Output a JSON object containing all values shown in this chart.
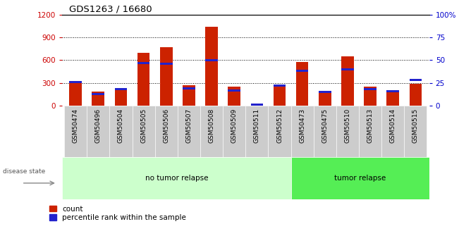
{
  "title": "GDS1263 / 16680",
  "samples": [
    "GSM50474",
    "GSM50496",
    "GSM50504",
    "GSM50505",
    "GSM50506",
    "GSM50507",
    "GSM50508",
    "GSM50509",
    "GSM50511",
    "GSM50512",
    "GSM50473",
    "GSM50475",
    "GSM50510",
    "GSM50513",
    "GSM50514",
    "GSM50515"
  ],
  "count_values": [
    310,
    185,
    215,
    700,
    770,
    270,
    1040,
    250,
    10,
    250,
    580,
    195,
    650,
    250,
    205,
    290
  ],
  "percentile_values": [
    26,
    13,
    18,
    47,
    46,
    19,
    50,
    17,
    1,
    22,
    38,
    15,
    40,
    18,
    16,
    28
  ],
  "no_tumor_count": 10,
  "tumor_relapse_count": 6,
  "left_ylim": [
    0,
    1200
  ],
  "right_ylim": [
    0,
    100
  ],
  "left_yticks": [
    0,
    300,
    600,
    900,
    1200
  ],
  "right_yticks": [
    0,
    25,
    50,
    75,
    100
  ],
  "right_yticklabels": [
    "0",
    "25",
    "50",
    "75",
    "100%"
  ],
  "left_tick_color": "#cc0000",
  "right_tick_color": "#0000cc",
  "bar_red": "#cc2200",
  "bar_blue": "#2222cc",
  "no_tumor_bg": "#ccffcc",
  "tumor_bg": "#55ee55",
  "tick_label_bg": "#cccccc",
  "legend_count": "count",
  "legend_percentile": "percentile rank within the sample",
  "disease_state_label": "disease state",
  "no_tumor_label": "no tumor relapse",
  "tumor_label": "tumor relapse"
}
